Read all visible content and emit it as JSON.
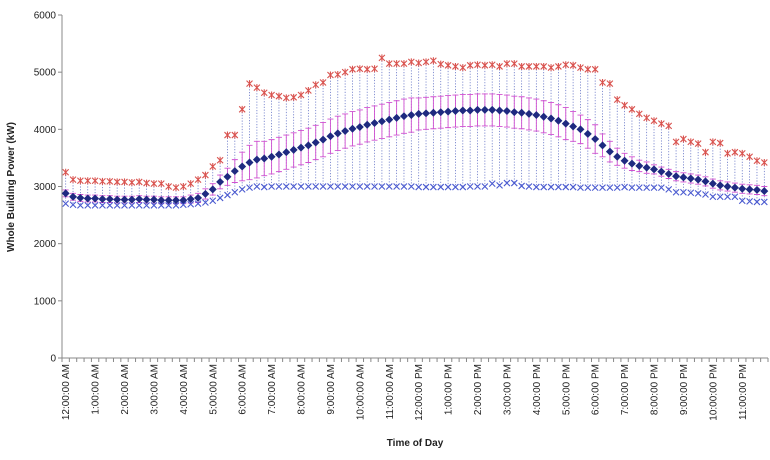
{
  "chart_data": {
    "type": "hilo-errorbar",
    "y_label": "Whole Building Power (kW)",
    "x_label": "Time of Day",
    "categories": [
      "12:00:00 AM",
      null,
      null,
      null,
      "1:00:00 AM",
      null,
      null,
      null,
      "2:00:00 AM",
      null,
      null,
      null,
      "3:00:00 AM",
      null,
      null,
      null,
      "4:00:00 AM",
      null,
      null,
      null,
      "5:00:00 AM",
      null,
      null,
      null,
      "6:00:00 AM",
      null,
      null,
      null,
      "7:00:00 AM",
      null,
      null,
      null,
      "8:00:00 AM",
      null,
      null,
      null,
      "9:00:00 AM",
      null,
      null,
      null,
      "10:00:00 AM",
      null,
      null,
      null,
      "11:00:00 AM",
      null,
      null,
      null,
      "12:00:00 PM",
      null,
      null,
      null,
      "1:00:00 PM",
      null,
      null,
      null,
      "2:00:00 PM",
      null,
      null,
      null,
      "3:00:00 PM",
      null,
      null,
      null,
      "4:00:00 PM",
      null,
      null,
      null,
      "5:00:00 PM",
      null,
      null,
      null,
      "6:00:00 PM",
      null,
      null,
      null,
      "7:00:00 PM",
      null,
      null,
      null,
      "8:00:00 PM",
      null,
      null,
      null,
      "9:00:00 PM",
      null,
      null,
      null,
      "10:00:00 PM",
      null,
      null,
      null,
      "11:00:00 PM",
      null,
      null,
      null
    ],
    "series": [
      {
        "marker": "star",
        "color": "#d9534f",
        "values": [
          3250,
          3120,
          3100,
          3100,
          3100,
          3090,
          3090,
          3080,
          3080,
          3070,
          3080,
          3060,
          3050,
          3050,
          3000,
          2980,
          3000,
          3050,
          3120,
          3200,
          3350,
          3460,
          3900,
          3900,
          4350,
          4800,
          4730,
          4640,
          4600,
          4580,
          4550,
          4560,
          4600,
          4680,
          4780,
          4820,
          4950,
          4960,
          5000,
          5050,
          5060,
          5050,
          5060,
          5250,
          5150,
          5150,
          5150,
          5180,
          5160,
          5180,
          5200,
          5140,
          5120,
          5100,
          5080,
          5120,
          5130,
          5120,
          5130,
          5100,
          5150,
          5150,
          5100,
          5100,
          5100,
          5100,
          5080,
          5100,
          5130,
          5120,
          5080,
          5050,
          5050,
          4820,
          4800,
          4520,
          4420,
          4350,
          4270,
          4200,
          4150,
          4100,
          4060,
          3780,
          3830,
          3780,
          3750,
          3600,
          3780,
          3760,
          3580,
          3600,
          3580,
          3520,
          3450,
          3420
        ]
      },
      {
        "marker": "diamond",
        "color": "#1f2a80",
        "error_color": "#d050d0",
        "values": [
          2880,
          2820,
          2800,
          2790,
          2790,
          2780,
          2780,
          2770,
          2770,
          2770,
          2780,
          2770,
          2770,
          2760,
          2760,
          2760,
          2760,
          2780,
          2800,
          2870,
          2950,
          3080,
          3170,
          3270,
          3350,
          3420,
          3470,
          3490,
          3520,
          3560,
          3600,
          3640,
          3680,
          3720,
          3770,
          3820,
          3880,
          3930,
          3970,
          4010,
          4040,
          4080,
          4110,
          4140,
          4170,
          4200,
          4230,
          4250,
          4270,
          4280,
          4290,
          4300,
          4310,
          4320,
          4330,
          4330,
          4340,
          4340,
          4340,
          4330,
          4320,
          4300,
          4290,
          4270,
          4250,
          4220,
          4190,
          4150,
          4100,
          4050,
          4000,
          3920,
          3830,
          3720,
          3610,
          3520,
          3450,
          3400,
          3360,
          3330,
          3300,
          3260,
          3220,
          3180,
          3160,
          3140,
          3120,
          3090,
          3050,
          3020,
          3000,
          2980,
          2960,
          2950,
          2940,
          2920
        ],
        "errors": [
          60,
          60,
          60,
          60,
          60,
          60,
          60,
          60,
          60,
          60,
          60,
          60,
          60,
          60,
          60,
          60,
          60,
          70,
          80,
          90,
          100,
          120,
          150,
          200,
          250,
          300,
          320,
          300,
          300,
          300,
          300,
          300,
          300,
          300,
          300,
          300,
          300,
          300,
          300,
          300,
          300,
          300,
          300,
          300,
          300,
          300,
          300,
          300,
          280,
          280,
          280,
          280,
          280,
          280,
          280,
          280,
          280,
          280,
          280,
          280,
          280,
          280,
          280,
          280,
          280,
          280,
          280,
          280,
          280,
          260,
          250,
          250,
          250,
          200,
          180,
          150,
          130,
          120,
          100,
          100,
          80,
          80,
          80,
          80,
          80,
          80,
          80,
          80,
          80,
          80,
          80,
          80,
          80,
          80,
          80,
          80
        ]
      },
      {
        "marker": "x",
        "color": "#4a5ad0",
        "values": [
          2700,
          2680,
          2670,
          2670,
          2670,
          2670,
          2670,
          2670,
          2670,
          2670,
          2670,
          2670,
          2670,
          2670,
          2670,
          2670,
          2680,
          2690,
          2700,
          2720,
          2750,
          2800,
          2850,
          2900,
          2950,
          2980,
          3000,
          2990,
          3000,
          3000,
          3000,
          3000,
          3000,
          3000,
          3000,
          3000,
          3000,
          3000,
          3000,
          3000,
          3000,
          3000,
          3000,
          3000,
          3000,
          3000,
          3000,
          3000,
          2990,
          2990,
          2990,
          2990,
          2990,
          2990,
          2990,
          3000,
          3000,
          3000,
          3050,
          3020,
          3060,
          3060,
          3010,
          3000,
          2990,
          2990,
          2990,
          2990,
          2990,
          2990,
          2980,
          2980,
          2980,
          2980,
          2980,
          2980,
          2990,
          2980,
          2980,
          2980,
          2980,
          2980,
          2950,
          2900,
          2900,
          2890,
          2880,
          2860,
          2820,
          2820,
          2820,
          2820,
          2750,
          2740,
          2730,
          2730
        ]
      }
    ],
    "ylim": [
      0,
      6000
    ],
    "yticks": [
      0,
      1000,
      2000,
      3000,
      4000,
      5000,
      6000
    ],
    "grid": false
  }
}
